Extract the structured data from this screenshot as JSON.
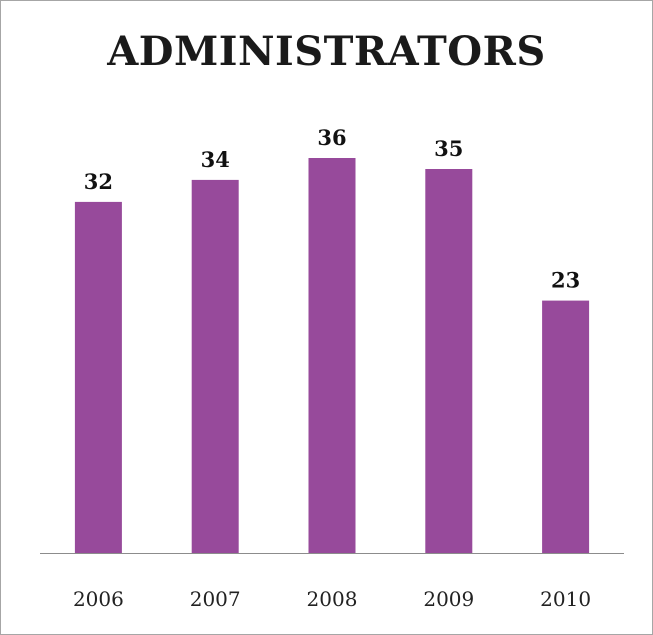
{
  "chart_data": {
    "type": "bar",
    "title": "ADMINISTRATORS",
    "categories": [
      "2006",
      "2007",
      "2008",
      "2009",
      "2010"
    ],
    "values": [
      32,
      34,
      36,
      35,
      23
    ],
    "xlabel": "",
    "ylabel": "",
    "ylim": [
      0,
      40
    ],
    "grid": false,
    "legend": "none",
    "data_labels": true,
    "bar_color": "#974a9b",
    "axis_color": "#8c8c8c"
  }
}
